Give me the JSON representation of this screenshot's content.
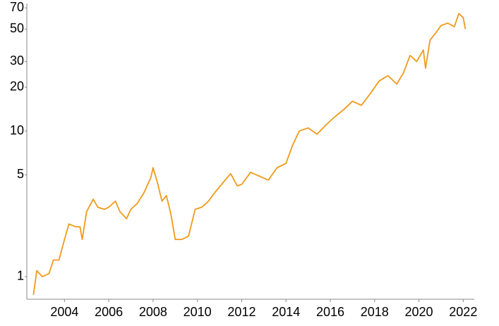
{
  "chart_data": {
    "type": "line",
    "log_y": true,
    "color": "#f09a1a",
    "x": [
      2002.6,
      2002.75,
      2003.0,
      2003.3,
      2003.5,
      2003.75,
      2004.0,
      2004.2,
      2004.5,
      2004.7,
      2004.8,
      2005.0,
      2005.3,
      2005.5,
      2005.8,
      2006.0,
      2006.3,
      2006.5,
      2006.8,
      2007.0,
      2007.3,
      2007.6,
      2007.9,
      2008.0,
      2008.2,
      2008.4,
      2008.6,
      2008.8,
      2009.0,
      2009.3,
      2009.6,
      2009.9,
      2010.2,
      2010.5,
      2010.8,
      2011.2,
      2011.5,
      2011.8,
      2012.0,
      2012.4,
      2012.8,
      2013.2,
      2013.6,
      2014.0,
      2014.3,
      2014.6,
      2015.0,
      2015.4,
      2015.8,
      2016.2,
      2016.6,
      2017.0,
      2017.4,
      2017.8,
      2018.2,
      2018.6,
      2019.0,
      2019.3,
      2019.6,
      2019.9,
      2020.2,
      2020.3,
      2020.5,
      2020.8,
      2021.0,
      2021.3,
      2021.6,
      2021.8,
      2022.0,
      2022.1
    ],
    "values": [
      0.75,
      1.1,
      1.0,
      1.05,
      1.3,
      1.3,
      1.8,
      2.3,
      2.2,
      2.2,
      1.8,
      2.8,
      3.4,
      3.0,
      2.9,
      3.0,
      3.3,
      2.8,
      2.5,
      2.9,
      3.2,
      3.8,
      4.8,
      5.6,
      4.4,
      3.3,
      3.6,
      2.7,
      1.8,
      1.8,
      1.9,
      2.9,
      3.0,
      3.3,
      3.8,
      4.5,
      5.1,
      4.2,
      4.3,
      5.2,
      4.9,
      4.6,
      5.6,
      6.0,
      8,
      10,
      10.5,
      9.5,
      11,
      12.5,
      14,
      16,
      15,
      18,
      22,
      24,
      21,
      25,
      33,
      30,
      36,
      27,
      42,
      48,
      53,
      55,
      52,
      64,
      60,
      50
    ],
    "xlim": [
      2002.3,
      2022.5
    ],
    "ylim": [
      0.7,
      75
    ],
    "xticks": [
      2004,
      2006,
      2008,
      2010,
      2012,
      2014,
      2016,
      2018,
      2020,
      2022
    ],
    "yticks": [
      1,
      5,
      10,
      20,
      30,
      50,
      70
    ]
  }
}
